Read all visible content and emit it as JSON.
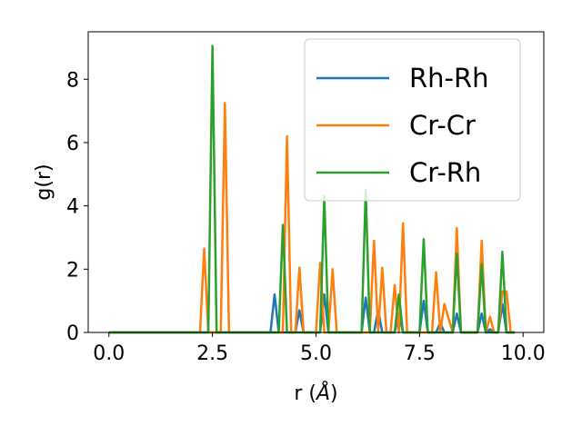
{
  "chart_data": {
    "type": "line",
    "xlabel": "r (",
    "xlabel_unit": "Å",
    "xlabel_close": ")",
    "ylabel": "g(r)",
    "xlim": [
      -0.5,
      10.5
    ],
    "ylim": [
      0,
      9.5
    ],
    "xticks": [
      0.0,
      2.5,
      5.0,
      7.5,
      10.0
    ],
    "xtick_labels": [
      "0.0",
      "2.5",
      "5.0",
      "7.5",
      "10.0"
    ],
    "yticks": [
      0,
      2,
      4,
      6,
      8
    ],
    "ytick_labels": [
      "0",
      "2",
      "4",
      "6",
      "8"
    ],
    "grid": false,
    "legend_position": "top-right",
    "series": [
      {
        "name": "Rh-Rh",
        "color": "#1f77b4",
        "x": [
          0.0,
          3.9,
          4.0,
          4.1,
          4.5,
          4.6,
          4.7,
          5.1,
          5.2,
          5.3,
          6.1,
          6.2,
          6.3,
          6.4,
          6.5,
          6.6,
          6.9,
          7.0,
          7.1,
          7.5,
          7.6,
          7.7,
          7.9,
          8.0,
          8.1,
          8.3,
          8.4,
          8.5,
          8.9,
          9.0,
          9.1,
          9.2,
          9.3,
          9.4,
          9.5,
          9.6,
          9.8
        ],
        "y": [
          0,
          0,
          1.2,
          0,
          0,
          0.7,
          0,
          0,
          1.2,
          0,
          0,
          1.1,
          0,
          0,
          0.7,
          0,
          0,
          0.6,
          0,
          0,
          1.0,
          0,
          0,
          0.3,
          0,
          0,
          0.6,
          0,
          0,
          0.6,
          0,
          0.1,
          0,
          0,
          0.9,
          0,
          0
        ]
      },
      {
        "name": "Cr-Cr",
        "color": "#ff7f0e",
        "x": [
          0.0,
          2.2,
          2.3,
          2.4,
          2.7,
          2.8,
          2.9,
          4.2,
          4.3,
          4.4,
          4.5,
          4.6,
          4.7,
          5.0,
          5.1,
          5.2,
          5.3,
          5.4,
          5.5,
          6.3,
          6.4,
          6.5,
          6.6,
          6.7,
          6.8,
          6.9,
          7.0,
          7.1,
          7.2,
          7.8,
          7.9,
          8.0,
          8.1,
          8.3,
          8.4,
          8.5,
          8.9,
          9.0,
          9.1,
          9.2,
          9.3,
          9.4,
          9.5,
          9.6,
          9.7,
          9.8
        ],
        "y": [
          0,
          0,
          2.65,
          0,
          0,
          7.25,
          0,
          0,
          6.2,
          0,
          0,
          2.05,
          0,
          0,
          2.2,
          0,
          0,
          2.0,
          0,
          0,
          2.9,
          0,
          2.05,
          0,
          0,
          1.5,
          0,
          3.45,
          0,
          0,
          1.9,
          0,
          0.9,
          0,
          3.3,
          0,
          0,
          2.9,
          0,
          0.5,
          0,
          0,
          1.3,
          1.3,
          0,
          0
        ]
      },
      {
        "name": "Cr-Rh",
        "color": "#2ca02c",
        "x": [
          0.0,
          2.4,
          2.5,
          2.6,
          4.1,
          4.2,
          4.3,
          5.1,
          5.2,
          5.3,
          6.1,
          6.2,
          6.3,
          6.9,
          7.0,
          7.1,
          7.5,
          7.6,
          7.7,
          8.3,
          8.4,
          8.5,
          8.9,
          9.0,
          9.1,
          9.4,
          9.5,
          9.6,
          9.8
        ],
        "y": [
          0,
          0,
          9.05,
          0,
          0,
          3.4,
          0,
          0,
          4.3,
          0,
          0,
          4.5,
          0,
          0,
          1.2,
          0,
          0,
          2.95,
          0,
          0,
          2.5,
          0,
          0,
          2.15,
          0,
          0,
          2.55,
          0,
          0
        ]
      }
    ]
  }
}
